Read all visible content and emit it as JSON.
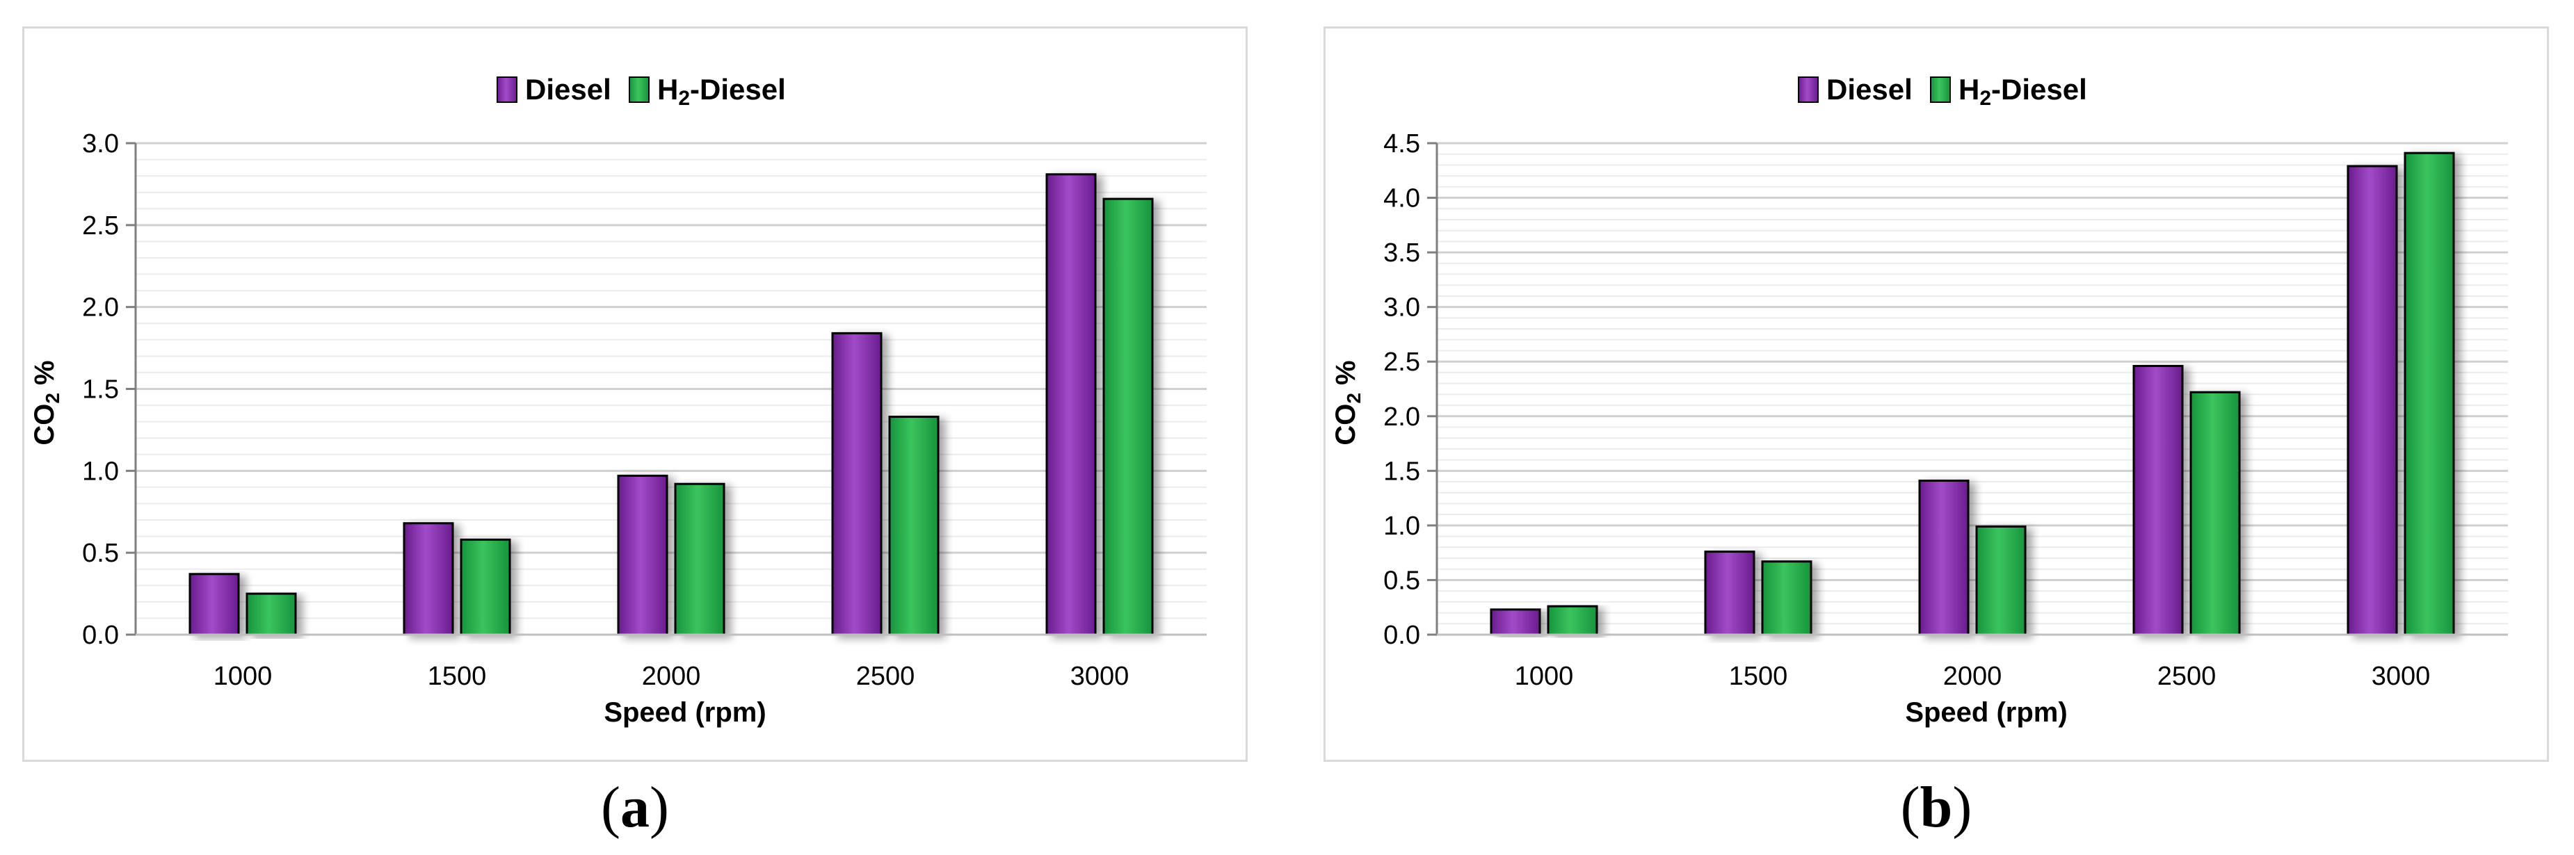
{
  "colors": {
    "diesel": "#6a1c8e",
    "diesel_light": "#a24bc9",
    "h2": "#17943c",
    "h2_light": "#3bc45e",
    "grid": "#d9d9d9",
    "axis": "#7f7f7f",
    "text": "#000000",
    "panel_border": "#d9d9d9"
  },
  "legend": {
    "diesel": "Diesel",
    "h2_prefix": "H",
    "h2_sub": "2",
    "h2_suffix": "-Diesel"
  },
  "axes": {
    "ylabel_prefix": "CO",
    "ylabel_sub": "2",
    "ylabel_suffix": " %"
  },
  "chart_data": [
    {
      "type": "bar",
      "panel": "a",
      "caption": "a",
      "categories": [
        "1000",
        "1500",
        "2000",
        "2500",
        "3000"
      ],
      "series": [
        {
          "name": "Diesel",
          "values": [
            0.37,
            0.68,
            0.97,
            1.84,
            2.81
          ]
        },
        {
          "name": "H₂-Diesel",
          "values": [
            0.25,
            0.58,
            0.92,
            1.33,
            2.66
          ]
        }
      ],
      "xlabel": "Speed (rpm)",
      "ylabel": "CO₂ %",
      "ylim": [
        0,
        3.0
      ],
      "yticks": [
        "0.0",
        "0.5",
        "1.0",
        "1.5",
        "2.0",
        "2.5",
        "3.0"
      ],
      "grid": true,
      "legend_position": "top-center"
    },
    {
      "type": "bar",
      "panel": "b",
      "caption": "b",
      "categories": [
        "1000",
        "1500",
        "2000",
        "2500",
        "3000"
      ],
      "series": [
        {
          "name": "Diesel",
          "values": [
            0.23,
            0.76,
            1.41,
            2.46,
            4.29
          ]
        },
        {
          "name": "H₂-Diesel",
          "values": [
            0.26,
            0.67,
            0.99,
            2.22,
            4.41
          ]
        }
      ],
      "xlabel": "Speed (rpm)",
      "ylabel": "CO₂ %",
      "ylim": [
        0,
        4.5
      ],
      "yticks": [
        "0.0",
        "0.5",
        "1.0",
        "1.5",
        "2.0",
        "2.5",
        "3.0",
        "3.5",
        "4.0",
        "4.5"
      ],
      "grid": true,
      "legend_position": "top-center"
    }
  ]
}
